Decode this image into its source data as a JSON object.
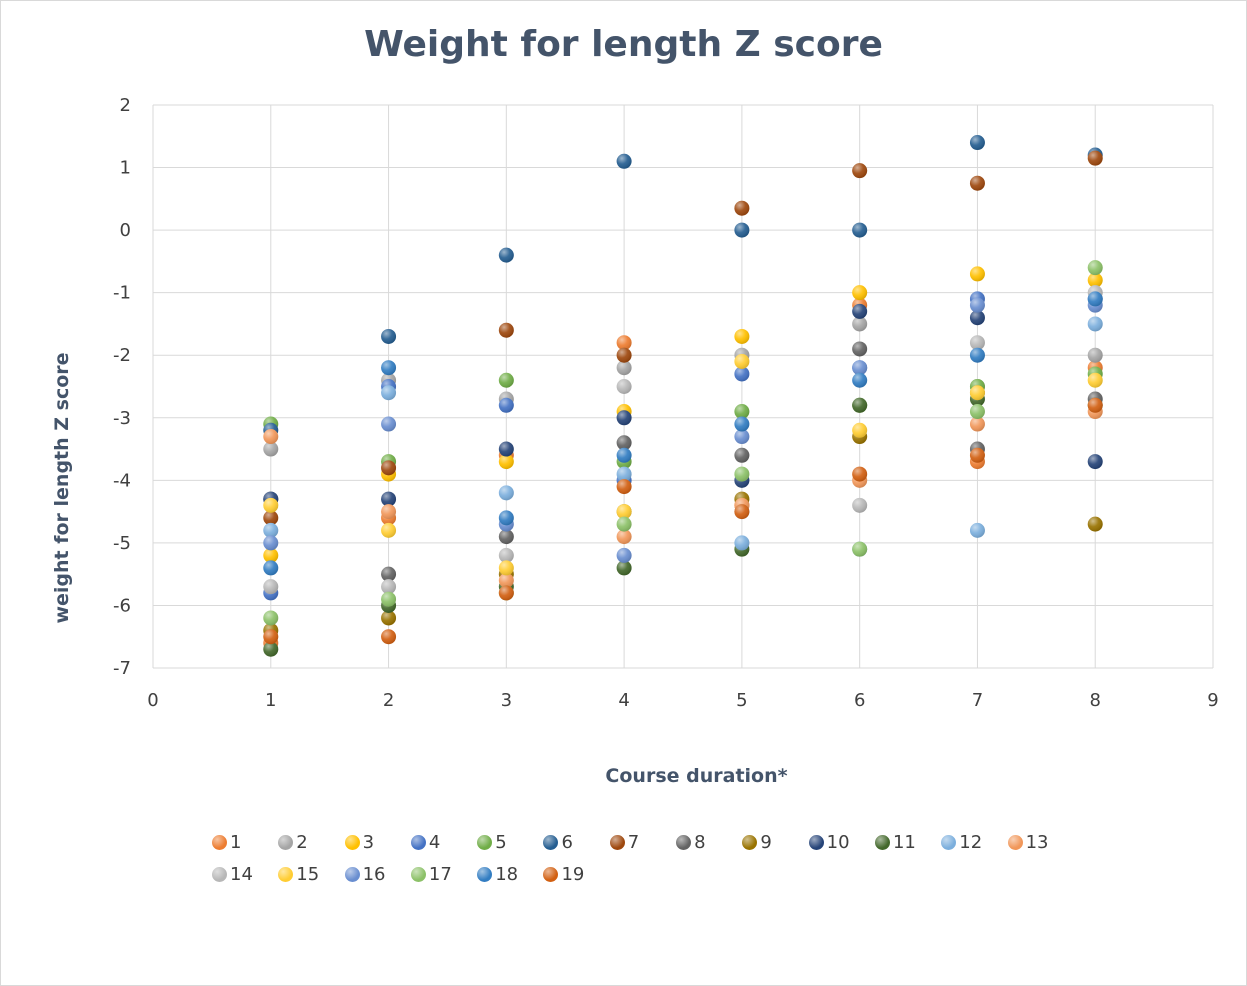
{
  "chart_data": {
    "type": "scatter",
    "title": "Weight for length Z score",
    "xlabel": "Course duration*",
    "ylabel": "weight for length Z score",
    "xlim": [
      0,
      9
    ],
    "ylim": [
      -7,
      2
    ],
    "x_ticks": [
      "0",
      "1",
      "2",
      "3",
      "4",
      "5",
      "6",
      "7",
      "8",
      "9"
    ],
    "y_ticks": [
      "2",
      "1",
      "0",
      "-1",
      "-2",
      "-3",
      "-4",
      "-5",
      "-6",
      "-7"
    ],
    "grid": "vertical and horizontal major gridlines",
    "legend_position": "bottom",
    "colors": [
      "#ed7d31",
      "#a5a5a5",
      "#ffc000",
      "#4472c4",
      "#70ad47",
      "#255e91",
      "#9e480e",
      "#636363",
      "#997300",
      "#264478",
      "#43682b",
      "#7cafdd",
      "#f1975a",
      "#b7b7b7",
      "#ffcd33",
      "#698ed0",
      "#8cc168",
      "#327dc2",
      "#d26012",
      "#848484",
      "#cc9a00",
      "#335aa1",
      "#5a8a39",
      "#9dc3e6",
      "#f4b183",
      "#c9c9c9",
      "#ffd966",
      "#8faadc",
      "#a9d18e",
      "#1f4e79",
      "#843c0c",
      "#525252",
      "#7f6000",
      "#203864",
      "#375623",
      "#5b9bd5",
      "#ed7d31",
      "#a5a5a5",
      "#ffc000",
      "#4472c4",
      "#70ad47",
      "#255e91",
      "#c55a11",
      "#636363",
      "#bf9000",
      "#2f5597",
      "#548235",
      "#9dc3e6",
      "#f8cbad",
      "#c9c9c9"
    ],
    "series": [
      {
        "name": "1",
        "x": [
          1,
          2,
          3,
          4,
          5,
          6,
          7,
          8
        ],
        "y": [
          -6.6,
          -4.6,
          -3.6,
          -1.8,
          -4.4,
          -1.2,
          -3.7,
          -2.2
        ]
      },
      {
        "name": "2",
        "x": [
          1,
          2,
          3,
          4,
          5,
          6,
          7,
          8
        ],
        "y": [
          -3.5,
          -2.4,
          -2.7,
          -2.2,
          -2.0,
          -1.5,
          -2.5,
          -2.0
        ]
      },
      {
        "name": "3",
        "x": [
          1,
          2,
          3,
          4,
          5,
          6,
          7,
          8
        ],
        "y": [
          -5.2,
          -3.9,
          -3.7,
          -2.9,
          -1.7,
          -1.0,
          -0.7,
          -0.8
        ]
      },
      {
        "name": "4",
        "x": [
          1,
          2,
          3,
          4,
          5,
          6,
          7,
          8
        ],
        "y": [
          -5.8,
          -2.5,
          -2.8,
          -4.0,
          -2.3,
          -2.2,
          -1.1,
          -1.1
        ]
      },
      {
        "name": "5",
        "x": [
          1,
          2,
          3,
          4,
          5,
          6,
          7,
          8
        ],
        "y": [
          -3.1,
          -3.7,
          -2.4,
          -3.7,
          -2.9,
          -2.8,
          -2.5,
          -2.3
        ]
      },
      {
        "name": "6",
        "x": [
          1,
          2,
          3,
          4,
          5,
          6,
          7,
          8
        ],
        "y": [
          -3.2,
          -1.7,
          -0.4,
          1.1,
          0.0,
          0.0,
          1.4,
          1.2
        ]
      },
      {
        "name": "7",
        "x": [
          1,
          2,
          3,
          4,
          5,
          6,
          7,
          8
        ],
        "y": [
          -4.6,
          -3.8,
          -1.6,
          -2.0,
          0.35,
          0.95,
          0.75,
          1.15
        ]
      },
      {
        "name": "8",
        "x": [
          1,
          2,
          3,
          4,
          5,
          6,
          7,
          8
        ],
        "y": [
          -4.3,
          -5.5,
          -4.9,
          -3.4,
          -3.6,
          -1.9,
          -3.5,
          -2.7
        ]
      },
      {
        "name": "9",
        "x": [
          1,
          2,
          3,
          4,
          5,
          6,
          7,
          8
        ],
        "y": [
          -6.4,
          -6.2,
          -5.5,
          -4.5,
          -4.3,
          -3.3,
          -2.6,
          -4.7
        ]
      },
      {
        "name": "10",
        "x": [
          1,
          2,
          3,
          4,
          5,
          6,
          7,
          8
        ],
        "y": [
          -4.3,
          -4.3,
          -3.5,
          -3.0,
          -4.0,
          -1.3,
          -1.4,
          -3.7
        ]
      },
      {
        "name": "11",
        "x": [
          1,
          2,
          3,
          4,
          5,
          6,
          7,
          8
        ],
        "y": [
          -6.7,
          -6.0,
          -5.7,
          -5.4,
          -5.1,
          -2.8,
          -2.7,
          -2.8
        ]
      },
      {
        "name": "12",
        "x": [
          1,
          2,
          3,
          4,
          5,
          6,
          7,
          8
        ],
        "y": [
          -4.8,
          -2.6,
          -4.2,
          -3.9,
          -5.0,
          -5.1,
          -4.8,
          -1.5
        ]
      },
      {
        "name": "13",
        "x": [
          1,
          2,
          3,
          4,
          5,
          6,
          7,
          8
        ],
        "y": [
          -3.3,
          -4.5,
          -5.6,
          -4.9,
          -4.4,
          -4.0,
          -3.1,
          -2.9
        ]
      },
      {
        "name": "14",
        "x": [
          1,
          2,
          3,
          4,
          5,
          6,
          7,
          8
        ],
        "y": [
          -5.7,
          -5.7,
          -5.2,
          -2.5,
          -4.5,
          -4.4,
          -1.8,
          -1.0
        ]
      },
      {
        "name": "15",
        "x": [
          1,
          2,
          3,
          4,
          5,
          6,
          7,
          8
        ],
        "y": [
          -4.4,
          -4.8,
          -5.4,
          -4.5,
          -2.1,
          -3.2,
          -2.6,
          -2.4
        ]
      },
      {
        "name": "16",
        "x": [
          1,
          2,
          3,
          4,
          5,
          6,
          7,
          8
        ],
        "y": [
          -5.0,
          -3.1,
          -4.7,
          -5.2,
          -3.3,
          -2.2,
          -1.2,
          -1.2
        ]
      },
      {
        "name": "17",
        "x": [
          1,
          2,
          3,
          4,
          5,
          6,
          7,
          8
        ],
        "y": [
          -6.2,
          -5.9,
          -5.8,
          -4.7,
          -3.9,
          -5.1,
          -2.9,
          -0.6
        ]
      },
      {
        "name": "18",
        "x": [
          1,
          2,
          3,
          4,
          5,
          6,
          7,
          8
        ],
        "y": [
          -5.4,
          -2.2,
          -4.6,
          -3.6,
          -3.1,
          -2.4,
          -2.0,
          -1.1
        ]
      },
      {
        "name": "19",
        "x": [
          1,
          2,
          3,
          4,
          5,
          6,
          7,
          8
        ],
        "y": [
          -6.5,
          -6.5,
          -5.8,
          -4.1,
          -4.5,
          -3.9,
          -3.6,
          -2.8
        ]
      }
    ]
  }
}
